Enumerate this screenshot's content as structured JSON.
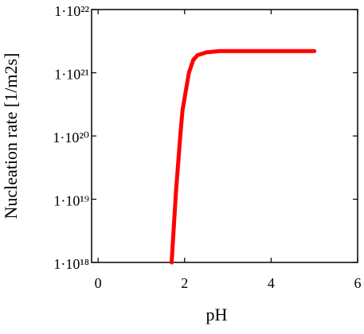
{
  "chart_data": {
    "type": "line",
    "xlabel": "pH",
    "ylabel": "Nucleation rate  [1/m2s]",
    "x": [
      1.7,
      1.8,
      1.9,
      1.95,
      2.0,
      2.1,
      2.2,
      2.3,
      2.5,
      2.8,
      3.5,
      4.3,
      5
    ],
    "series": [
      {
        "name": "Nucleation rate",
        "color": "#ff0000",
        "values": [
          1e+18,
          1.3e+19,
          1e+20,
          2.5e+20,
          4e+20,
          1e+21,
          1.6e+21,
          1.9e+21,
          2.1e+21,
          2.2e+21,
          2.2e+21,
          2.2e+21,
          2.2e+21
        ]
      }
    ],
    "xlim": [
      -0.15,
      6
    ],
    "xticks": [
      0,
      2,
      4,
      6
    ],
    "ylim": [
      1e+18,
      1e+22
    ],
    "ylog": true,
    "yticks": [
      {
        "value": 1e+18,
        "label": "1·10¹⁸"
      },
      {
        "value": 1e+19,
        "label": "1·10¹⁹"
      },
      {
        "value": 1e+20,
        "label": "1·10²⁰"
      },
      {
        "value": 1e+21,
        "label": "1·10²¹"
      },
      {
        "value": 1e+22,
        "label": "1·10²²"
      }
    ],
    "grid": false,
    "legend": false
  }
}
